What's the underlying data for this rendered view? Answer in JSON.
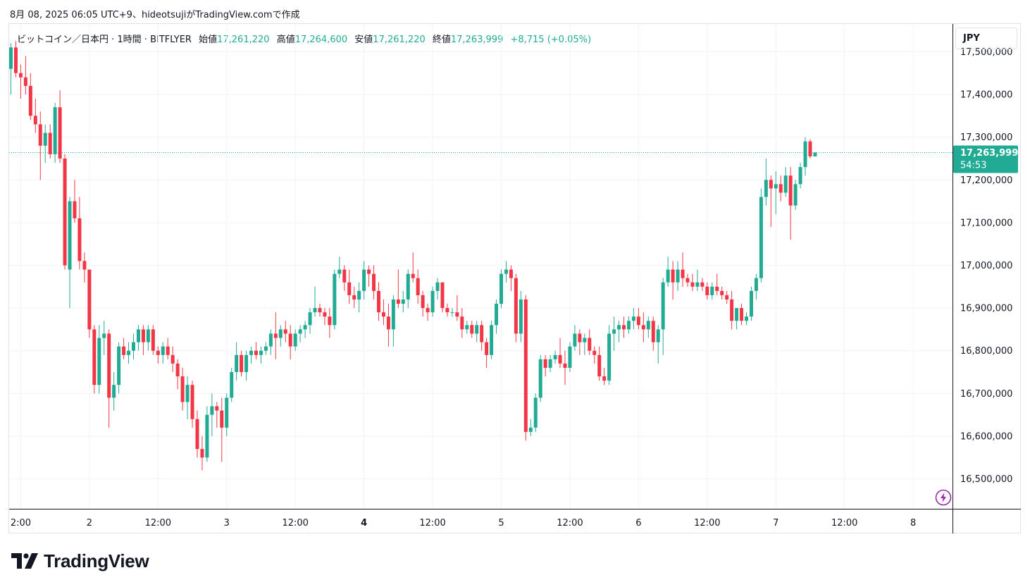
{
  "caption": "8月 08, 2025 06:05 UTC+9、hideotsujiがTradingView.comで作成",
  "legend": {
    "symbol": "ビットコイン／日本円 · 1時間 · BITFLYER",
    "open_label": "始値",
    "open": "17,261,220",
    "high_label": "高値",
    "high": "17,264,600",
    "low_label": "安値",
    "low": "17,261,220",
    "close_label": "終値",
    "close": "17,263,999",
    "change": "+8,715 (+0.05%)"
  },
  "currency": "JPY",
  "last_price": {
    "price": "17,263,999",
    "countdown": "54:53"
  },
  "branding": "TradingView",
  "colors": {
    "up": "#22ab94",
    "down": "#f23645",
    "grid": "#f0f3fa",
    "axis_text": "#131722",
    "price_line": "#22ab94",
    "alert": "#9c27b0"
  },
  "chart_data": {
    "type": "candlestick",
    "interval": "1時間",
    "y_ticks": [
      17500000,
      17400000,
      17300000,
      17200000,
      17100000,
      17000000,
      16900000,
      16800000,
      16700000,
      16600000,
      16500000
    ],
    "y_tick_labels": [
      "17,500,000",
      "17,400,000",
      "17,300,000",
      "17,200,000",
      "17,100,000",
      "17,000,000",
      "16,900,000",
      "16,800,000",
      "16,700,000",
      "16,600,000",
      "16,500,000"
    ],
    "ylim": [
      16430000,
      17565000
    ],
    "x_tick_labels": [
      {
        "label": "2:00",
        "bar": 2,
        "bold": false
      },
      {
        "label": "2",
        "bar": 16,
        "bold": false
      },
      {
        "label": "12:00",
        "bar": 30,
        "bold": false
      },
      {
        "label": "3",
        "bar": 44,
        "bold": false
      },
      {
        "label": "12:00",
        "bar": 58,
        "bold": false
      },
      {
        "label": "4",
        "bar": 72,
        "bold": true
      },
      {
        "label": "12:00",
        "bar": 86,
        "bold": false
      },
      {
        "label": "5",
        "bar": 100,
        "bold": false
      },
      {
        "label": "12:00",
        "bar": 114,
        "bold": false
      },
      {
        "label": "6",
        "bar": 128,
        "bold": false
      },
      {
        "label": "12:00",
        "bar": 142,
        "bold": false
      },
      {
        "label": "7",
        "bar": 156,
        "bold": false
      },
      {
        "label": "12:00",
        "bar": 170,
        "bold": false
      },
      {
        "label": "8",
        "bar": 184,
        "bold": false
      }
    ],
    "candles": [
      [
        17460000,
        17520000,
        17400000,
        17510000
      ],
      [
        17510000,
        17525000,
        17440000,
        17450000
      ],
      [
        17450000,
        17470000,
        17390000,
        17440000
      ],
      [
        17440000,
        17490000,
        17400000,
        17420000
      ],
      [
        17420000,
        17450000,
        17340000,
        17350000
      ],
      [
        17350000,
        17390000,
        17310000,
        17330000
      ],
      [
        17330000,
        17360000,
        17200000,
        17280000
      ],
      [
        17280000,
        17330000,
        17240000,
        17310000
      ],
      [
        17310000,
        17330000,
        17250000,
        17260000
      ],
      [
        17260000,
        17380000,
        17240000,
        17370000
      ],
      [
        17370000,
        17410000,
        17240000,
        17250000
      ],
      [
        17250000,
        17260000,
        16990000,
        17000000
      ],
      [
        16990000,
        17160000,
        16900000,
        17150000
      ],
      [
        17150000,
        17200000,
        17100000,
        17110000
      ],
      [
        17110000,
        17160000,
        16990000,
        17010000
      ],
      [
        17010000,
        17030000,
        16960000,
        16990000
      ],
      [
        16990000,
        16990000,
        16830000,
        16850000
      ],
      [
        16850000,
        16860000,
        16700000,
        16720000
      ],
      [
        16720000,
        16860000,
        16700000,
        16830000
      ],
      [
        16830000,
        16870000,
        16790000,
        16840000
      ],
      [
        16840000,
        16850000,
        16620000,
        16690000
      ],
      [
        16690000,
        16750000,
        16660000,
        16720000
      ],
      [
        16720000,
        16820000,
        16700000,
        16810000
      ],
      [
        16810000,
        16830000,
        16780000,
        16790000
      ],
      [
        16790000,
        16820000,
        16770000,
        16800000
      ],
      [
        16800000,
        16840000,
        16780000,
        16820000
      ],
      [
        16820000,
        16860000,
        16800000,
        16850000
      ],
      [
        16850000,
        16860000,
        16790000,
        16820000
      ],
      [
        16820000,
        16860000,
        16800000,
        16850000
      ],
      [
        16850000,
        16860000,
        16790000,
        16800000
      ],
      [
        16800000,
        16810000,
        16770000,
        16790000
      ],
      [
        16790000,
        16820000,
        16770000,
        16810000
      ],
      [
        16810000,
        16830000,
        16780000,
        16790000
      ],
      [
        16790000,
        16810000,
        16750000,
        16770000
      ],
      [
        16770000,
        16780000,
        16710000,
        16740000
      ],
      [
        16740000,
        16760000,
        16660000,
        16680000
      ],
      [
        16680000,
        16740000,
        16640000,
        16720000
      ],
      [
        16720000,
        16730000,
        16620000,
        16640000
      ],
      [
        16640000,
        16660000,
        16550000,
        16570000
      ],
      [
        16570000,
        16600000,
        16520000,
        16550000
      ],
      [
        16550000,
        16670000,
        16540000,
        16650000
      ],
      [
        16650000,
        16700000,
        16600000,
        16670000
      ],
      [
        16670000,
        16680000,
        16620000,
        16660000
      ],
      [
        16660000,
        16690000,
        16540000,
        16620000
      ],
      [
        16620000,
        16700000,
        16600000,
        16690000
      ],
      [
        16690000,
        16760000,
        16680000,
        16750000
      ],
      [
        16750000,
        16820000,
        16730000,
        16790000
      ],
      [
        16790000,
        16800000,
        16740000,
        16750000
      ],
      [
        16750000,
        16800000,
        16730000,
        16790000
      ],
      [
        16790000,
        16810000,
        16770000,
        16800000
      ],
      [
        16800000,
        16820000,
        16780000,
        16790000
      ],
      [
        16790000,
        16810000,
        16770000,
        16800000
      ],
      [
        16800000,
        16820000,
        16790000,
        16810000
      ],
      [
        16810000,
        16850000,
        16790000,
        16840000
      ],
      [
        16840000,
        16890000,
        16780000,
        16830000
      ],
      [
        16830000,
        16860000,
        16810000,
        16850000
      ],
      [
        16850000,
        16870000,
        16820000,
        16840000
      ],
      [
        16840000,
        16860000,
        16780000,
        16810000
      ],
      [
        16810000,
        16850000,
        16800000,
        16840000
      ],
      [
        16840000,
        16860000,
        16820000,
        16850000
      ],
      [
        16850000,
        16870000,
        16830000,
        16860000
      ],
      [
        16860000,
        16900000,
        16840000,
        16890000
      ],
      [
        16890000,
        16950000,
        16880000,
        16900000
      ],
      [
        16900000,
        16910000,
        16880000,
        16890000
      ],
      [
        16890000,
        16900000,
        16860000,
        16880000
      ],
      [
        16880000,
        16900000,
        16830000,
        16860000
      ],
      [
        16860000,
        16990000,
        16850000,
        16980000
      ],
      [
        16980000,
        17020000,
        16970000,
        16990000
      ],
      [
        16990000,
        17000000,
        16940000,
        16960000
      ],
      [
        16960000,
        16990000,
        16910000,
        16930000
      ],
      [
        16930000,
        16950000,
        16900000,
        16920000
      ],
      [
        16920000,
        16960000,
        16890000,
        16940000
      ],
      [
        16940000,
        17010000,
        16920000,
        16990000
      ],
      [
        16990000,
        17000000,
        16950000,
        16980000
      ],
      [
        16980000,
        17000000,
        16920000,
        16940000
      ],
      [
        16940000,
        16960000,
        16870000,
        16890000
      ],
      [
        16890000,
        16920000,
        16860000,
        16880000
      ],
      [
        16880000,
        16910000,
        16810000,
        16850000
      ],
      [
        16850000,
        16930000,
        16810000,
        16920000
      ],
      [
        16920000,
        16990000,
        16900000,
        16910000
      ],
      [
        16910000,
        16940000,
        16890000,
        16920000
      ],
      [
        16920000,
        16990000,
        16900000,
        16980000
      ],
      [
        16980000,
        17030000,
        16960000,
        16970000
      ],
      [
        16970000,
        16990000,
        16910000,
        16930000
      ],
      [
        16930000,
        16940000,
        16880000,
        16900000
      ],
      [
        16900000,
        16910000,
        16870000,
        16890000
      ],
      [
        16890000,
        16950000,
        16880000,
        16940000
      ],
      [
        16940000,
        16970000,
        16920000,
        16960000
      ],
      [
        16960000,
        16960000,
        16890000,
        16900000
      ],
      [
        16900000,
        16910000,
        16880000,
        16890000
      ],
      [
        16890000,
        16900000,
        16880000,
        16890000
      ],
      [
        16890000,
        16930000,
        16870000,
        16880000
      ],
      [
        16880000,
        16900000,
        16830000,
        16850000
      ],
      [
        16850000,
        16870000,
        16840000,
        16860000
      ],
      [
        16860000,
        16870000,
        16830000,
        16840000
      ],
      [
        16840000,
        16870000,
        16820000,
        16860000
      ],
      [
        16860000,
        16870000,
        16800000,
        16820000
      ],
      [
        16820000,
        16830000,
        16760000,
        16790000
      ],
      [
        16790000,
        16870000,
        16780000,
        16860000
      ],
      [
        16860000,
        16920000,
        16840000,
        16910000
      ],
      [
        16910000,
        16990000,
        16900000,
        16980000
      ],
      [
        16980000,
        17010000,
        16960000,
        16990000
      ],
      [
        16990000,
        17000000,
        16940000,
        16970000
      ],
      [
        16970000,
        16980000,
        16820000,
        16840000
      ],
      [
        16840000,
        16940000,
        16820000,
        16920000
      ],
      [
        16920000,
        16930000,
        16590000,
        16610000
      ],
      [
        16610000,
        16640000,
        16600000,
        16620000
      ],
      [
        16620000,
        16700000,
        16610000,
        16690000
      ],
      [
        16690000,
        16790000,
        16680000,
        16780000
      ],
      [
        16780000,
        16790000,
        16740000,
        16760000
      ],
      [
        16760000,
        16790000,
        16750000,
        16780000
      ],
      [
        16780000,
        16800000,
        16770000,
        16790000
      ],
      [
        16790000,
        16830000,
        16760000,
        16770000
      ],
      [
        16770000,
        16800000,
        16720000,
        16760000
      ],
      [
        16760000,
        16820000,
        16750000,
        16810000
      ],
      [
        16810000,
        16860000,
        16800000,
        16840000
      ],
      [
        16840000,
        16850000,
        16790000,
        16820000
      ],
      [
        16820000,
        16840000,
        16790000,
        16830000
      ],
      [
        16830000,
        16850000,
        16790000,
        16800000
      ],
      [
        16800000,
        16810000,
        16770000,
        16790000
      ],
      [
        16790000,
        16810000,
        16730000,
        16740000
      ],
      [
        16740000,
        16760000,
        16720000,
        16730000
      ],
      [
        16730000,
        16860000,
        16720000,
        16840000
      ],
      [
        16840000,
        16880000,
        16800000,
        16850000
      ],
      [
        16850000,
        16870000,
        16820000,
        16860000
      ],
      [
        16860000,
        16880000,
        16830000,
        16850000
      ],
      [
        16850000,
        16880000,
        16840000,
        16870000
      ],
      [
        16870000,
        16900000,
        16850000,
        16880000
      ],
      [
        16880000,
        16900000,
        16850000,
        16860000
      ],
      [
        16860000,
        16890000,
        16820000,
        16850000
      ],
      [
        16850000,
        16880000,
        16830000,
        16870000
      ],
      [
        16870000,
        16880000,
        16800000,
        16820000
      ],
      [
        16820000,
        16860000,
        16770000,
        16850000
      ],
      [
        16850000,
        16970000,
        16790000,
        16960000
      ],
      [
        16960000,
        17020000,
        16950000,
        16990000
      ],
      [
        16990000,
        17010000,
        16920000,
        16960000
      ],
      [
        16960000,
        17010000,
        16940000,
        16990000
      ],
      [
        16990000,
        17030000,
        16950000,
        16970000
      ],
      [
        16970000,
        16980000,
        16950000,
        16960000
      ],
      [
        16960000,
        16980000,
        16940000,
        16950000
      ],
      [
        16950000,
        16990000,
        16940000,
        16960000
      ],
      [
        16960000,
        16970000,
        16940000,
        16950000
      ],
      [
        16950000,
        16960000,
        16920000,
        16930000
      ],
      [
        16930000,
        16960000,
        16920000,
        16950000
      ],
      [
        16950000,
        16980000,
        16930000,
        16940000
      ],
      [
        16940000,
        16950000,
        16920000,
        16930000
      ],
      [
        16930000,
        16940000,
        16910000,
        16920000
      ],
      [
        16920000,
        16940000,
        16850000,
        16870000
      ],
      [
        16870000,
        16900000,
        16850000,
        16900000
      ],
      [
        16900000,
        16910000,
        16860000,
        16870000
      ],
      [
        16870000,
        16890000,
        16860000,
        16880000
      ],
      [
        16880000,
        16950000,
        16870000,
        16940000
      ],
      [
        16940000,
        16980000,
        16920000,
        16970000
      ],
      [
        16970000,
        17180000,
        16960000,
        17160000
      ],
      [
        17160000,
        17250000,
        17140000,
        17200000
      ],
      [
        17200000,
        17210000,
        17090000,
        17180000
      ],
      [
        17180000,
        17220000,
        17120000,
        17190000
      ],
      [
        17190000,
        17210000,
        17150000,
        17170000
      ],
      [
        17170000,
        17230000,
        17160000,
        17210000
      ],
      [
        17210000,
        17230000,
        17060000,
        17140000
      ],
      [
        17140000,
        17200000,
        17130000,
        17190000
      ],
      [
        17190000,
        17240000,
        17180000,
        17230000
      ],
      [
        17230000,
        17300000,
        17210000,
        17290000
      ],
      [
        17290000,
        17295000,
        17250000,
        17255000
      ],
      [
        17255000,
        17265000,
        17255000,
        17264000
      ]
    ]
  }
}
